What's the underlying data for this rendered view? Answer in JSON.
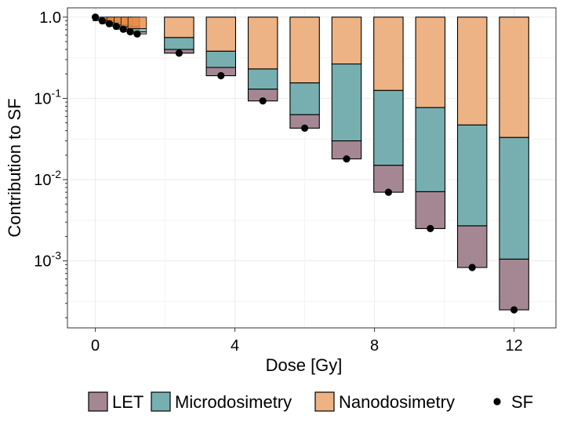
{
  "chart_data": {
    "type": "bar",
    "xlabel": "Dose [Gy]",
    "ylabel": "Contribution to SF",
    "yscale": "log",
    "ylim": [
      0.00015,
      1.3
    ],
    "xlim": [
      -0.8,
      13.2
    ],
    "x_ticks": [
      {
        "value": 0,
        "label": "0"
      },
      {
        "value": 4,
        "label": "4"
      },
      {
        "value": 8,
        "label": "8"
      },
      {
        "value": 12,
        "label": "12"
      }
    ],
    "y_ticks": [
      {
        "value": 1,
        "base": "10",
        "exp": "0",
        "mant": "1.0",
        "kind": "plain"
      },
      {
        "value": 0.1,
        "base": "10",
        "exp": "-1",
        "kind": "sci"
      },
      {
        "value": 0.01,
        "base": "10",
        "exp": "-2",
        "kind": "sci"
      },
      {
        "value": 0.001,
        "base": "10",
        "exp": "-3",
        "kind": "sci"
      }
    ],
    "grid": true,
    "legend_position": "bottom",
    "colors": {
      "LET": "#a58794",
      "Microdosimetry": "#77afb0",
      "Nanodosimetry": "#edb384",
      "NanodosimetrySmall": "#e98b43"
    },
    "series": [
      {
        "name": "LET",
        "kind": "bar"
      },
      {
        "name": "Microdosimetry",
        "kind": "bar"
      },
      {
        "name": "Nanodosimetry",
        "kind": "bar"
      },
      {
        "name": "SF",
        "kind": "point"
      }
    ],
    "bars": [
      {
        "dose": 0.0,
        "sf": 1.0,
        "let_top": 1.0,
        "micro_top": 1.0
      },
      {
        "dose": 0.2,
        "sf": 0.9,
        "let_top": 0.93,
        "micro_top": 0.95
      },
      {
        "dose": 0.4,
        "sf": 0.83,
        "let_top": 0.86,
        "micro_top": 0.9
      },
      {
        "dose": 0.6,
        "sf": 0.77,
        "let_top": 0.8,
        "micro_top": 0.85
      },
      {
        "dose": 0.8,
        "sf": 0.71,
        "let_top": 0.75,
        "micro_top": 0.8
      },
      {
        "dose": 1.0,
        "sf": 0.66,
        "let_top": 0.7,
        "micro_top": 0.76
      },
      {
        "dose": 1.2,
        "sf": 0.62,
        "let_top": 0.66,
        "micro_top": 0.72
      },
      {
        "dose": 2.4,
        "sf": 0.36,
        "let_top": 0.4,
        "micro_top": 0.56
      },
      {
        "dose": 3.6,
        "sf": 0.19,
        "let_top": 0.24,
        "micro_top": 0.38
      },
      {
        "dose": 4.8,
        "sf": 0.093,
        "let_top": 0.13,
        "micro_top": 0.23
      },
      {
        "dose": 6.0,
        "sf": 0.043,
        "let_top": 0.063,
        "micro_top": 0.155
      },
      {
        "dose": 7.2,
        "sf": 0.018,
        "let_top": 0.03,
        "micro_top": 0.265
      },
      {
        "dose": 8.4,
        "sf": 0.007,
        "let_top": 0.015,
        "micro_top": 0.125
      },
      {
        "dose": 9.6,
        "sf": 0.0025,
        "let_top": 0.0071,
        "micro_top": 0.077
      },
      {
        "dose": 10.8,
        "sf": 0.00083,
        "let_top": 0.0027,
        "micro_top": 0.047
      },
      {
        "dose": 12.0,
        "sf": 0.00025,
        "let_top": 0.00105,
        "micro_top": 0.033
      }
    ]
  }
}
